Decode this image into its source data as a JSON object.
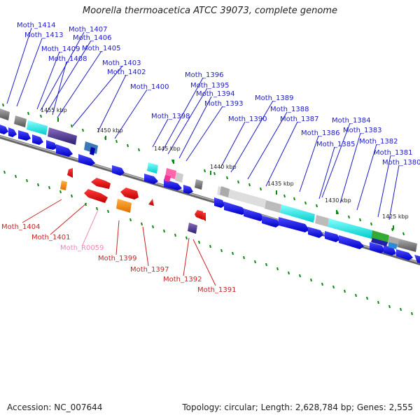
{
  "title": "Moorella thermoacetica ATCC 39073, complete genome",
  "footer": {
    "accession": "Accession: NC_007644",
    "summary": "Topology: circular; Length: 2,628,784 bp; Genes: 2,555"
  },
  "colors": {
    "top_label": "#1a1acc",
    "bottom_label": "#cc2222",
    "rna_label": "#ee88bb",
    "cds_blue": "#1515ee",
    "backbone": "#888888",
    "tick_green": "#118811"
  },
  "kbp_ticks": [
    "1455 kbp",
    "1450 kbp",
    "1445 kbp",
    "1440 kbp",
    "1435 kbp",
    "1430 kbp",
    "1425 kbp"
  ],
  "top_genes": [
    "Moth_1414",
    "Moth_1413",
    "Moth_1407",
    "Moth_1406",
    "Moth_1409",
    "Moth_1405",
    "Moth_1408",
    "Moth_1403",
    "Moth_1402",
    "Moth_1400",
    "Moth_1396",
    "Moth_1395",
    "Moth_1394",
    "Moth_1393",
    "Moth_1398",
    "Moth_1389",
    "Moth_1388",
    "Moth_1390",
    "Moth_1387",
    "Moth_1384",
    "Moth_1386",
    "Moth_1383",
    "Moth_1385",
    "Moth_1382",
    "Moth_1381",
    "Moth_1380"
  ],
  "bottom_genes": [
    "Moth_1404",
    "Moth_1401",
    "Moth_R0059",
    "Moth_1399",
    "Moth_1397",
    "Moth_1392",
    "Moth_1391"
  ]
}
